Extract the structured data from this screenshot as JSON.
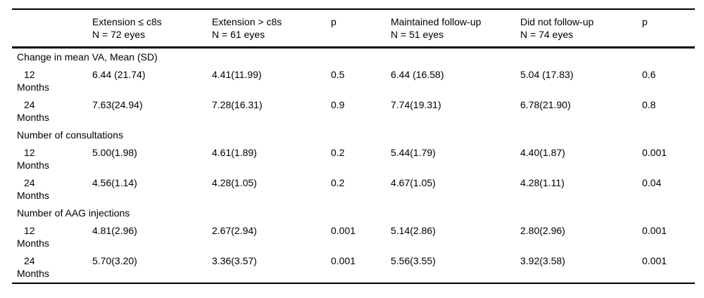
{
  "meta": {
    "colors": {
      "background": "#ffffff",
      "text": "#000000",
      "rule": "#000000"
    }
  },
  "table": {
    "columns": [
      {
        "label": "",
        "sub": ""
      },
      {
        "label": "Extension ≤ c8s",
        "sub": "N = 72 eyes"
      },
      {
        "label": "Extension > c8s",
        "sub": "N = 61 eyes"
      },
      {
        "label": "p",
        "sub": ""
      },
      {
        "label": "Maintained follow-up",
        "sub": "N = 51 eyes"
      },
      {
        "label": "Did not follow-up",
        "sub": "N = 74 eyes"
      },
      {
        "label": "p",
        "sub": ""
      }
    ],
    "sections": [
      {
        "title": "Change in mean VA, Mean (SD)",
        "rows": [
          {
            "period": "12",
            "unit": "Months",
            "values": [
              "6.44 (21.74)",
              "4.41(11.99)",
              "0.5",
              "6.44 (16.58)",
              "5.04 (17.83)",
              "0.6"
            ]
          },
          {
            "period": "24",
            "unit": "Months",
            "values": [
              "7.63(24.94)",
              "7.28(16.31)",
              "0.9",
              "7.74(19.31)",
              "6.78(21.90)",
              "0.8"
            ]
          }
        ]
      },
      {
        "title": "Number of consultations",
        "rows": [
          {
            "period": "12",
            "unit": "Months",
            "values": [
              "5.00(1.98)",
              "4.61(1.89)",
              "0.2",
              "5.44(1.79)",
              "4.40(1.87)",
              "0.001"
            ]
          },
          {
            "period": "24",
            "unit": "Months",
            "values": [
              "4.56(1.14)",
              "4.28(1.05)",
              "0.2",
              "4.67(1.05)",
              "4.28(1.11)",
              "0.04"
            ]
          }
        ]
      },
      {
        "title": "Number of AAG injections",
        "rows": [
          {
            "period": "12",
            "unit": "Months",
            "values": [
              "4.81(2.96)",
              "2.67(2.94)",
              "0.001",
              "5.14(2.86)",
              "2.80(2.96)",
              "0.001"
            ]
          },
          {
            "period": "24",
            "unit": "Months",
            "values": [
              "5.70(3.20)",
              "3.36(3.57)",
              "0.001",
              "5.56(3.55)",
              "3.92(3.58)",
              "0.001"
            ]
          }
        ]
      }
    ]
  }
}
